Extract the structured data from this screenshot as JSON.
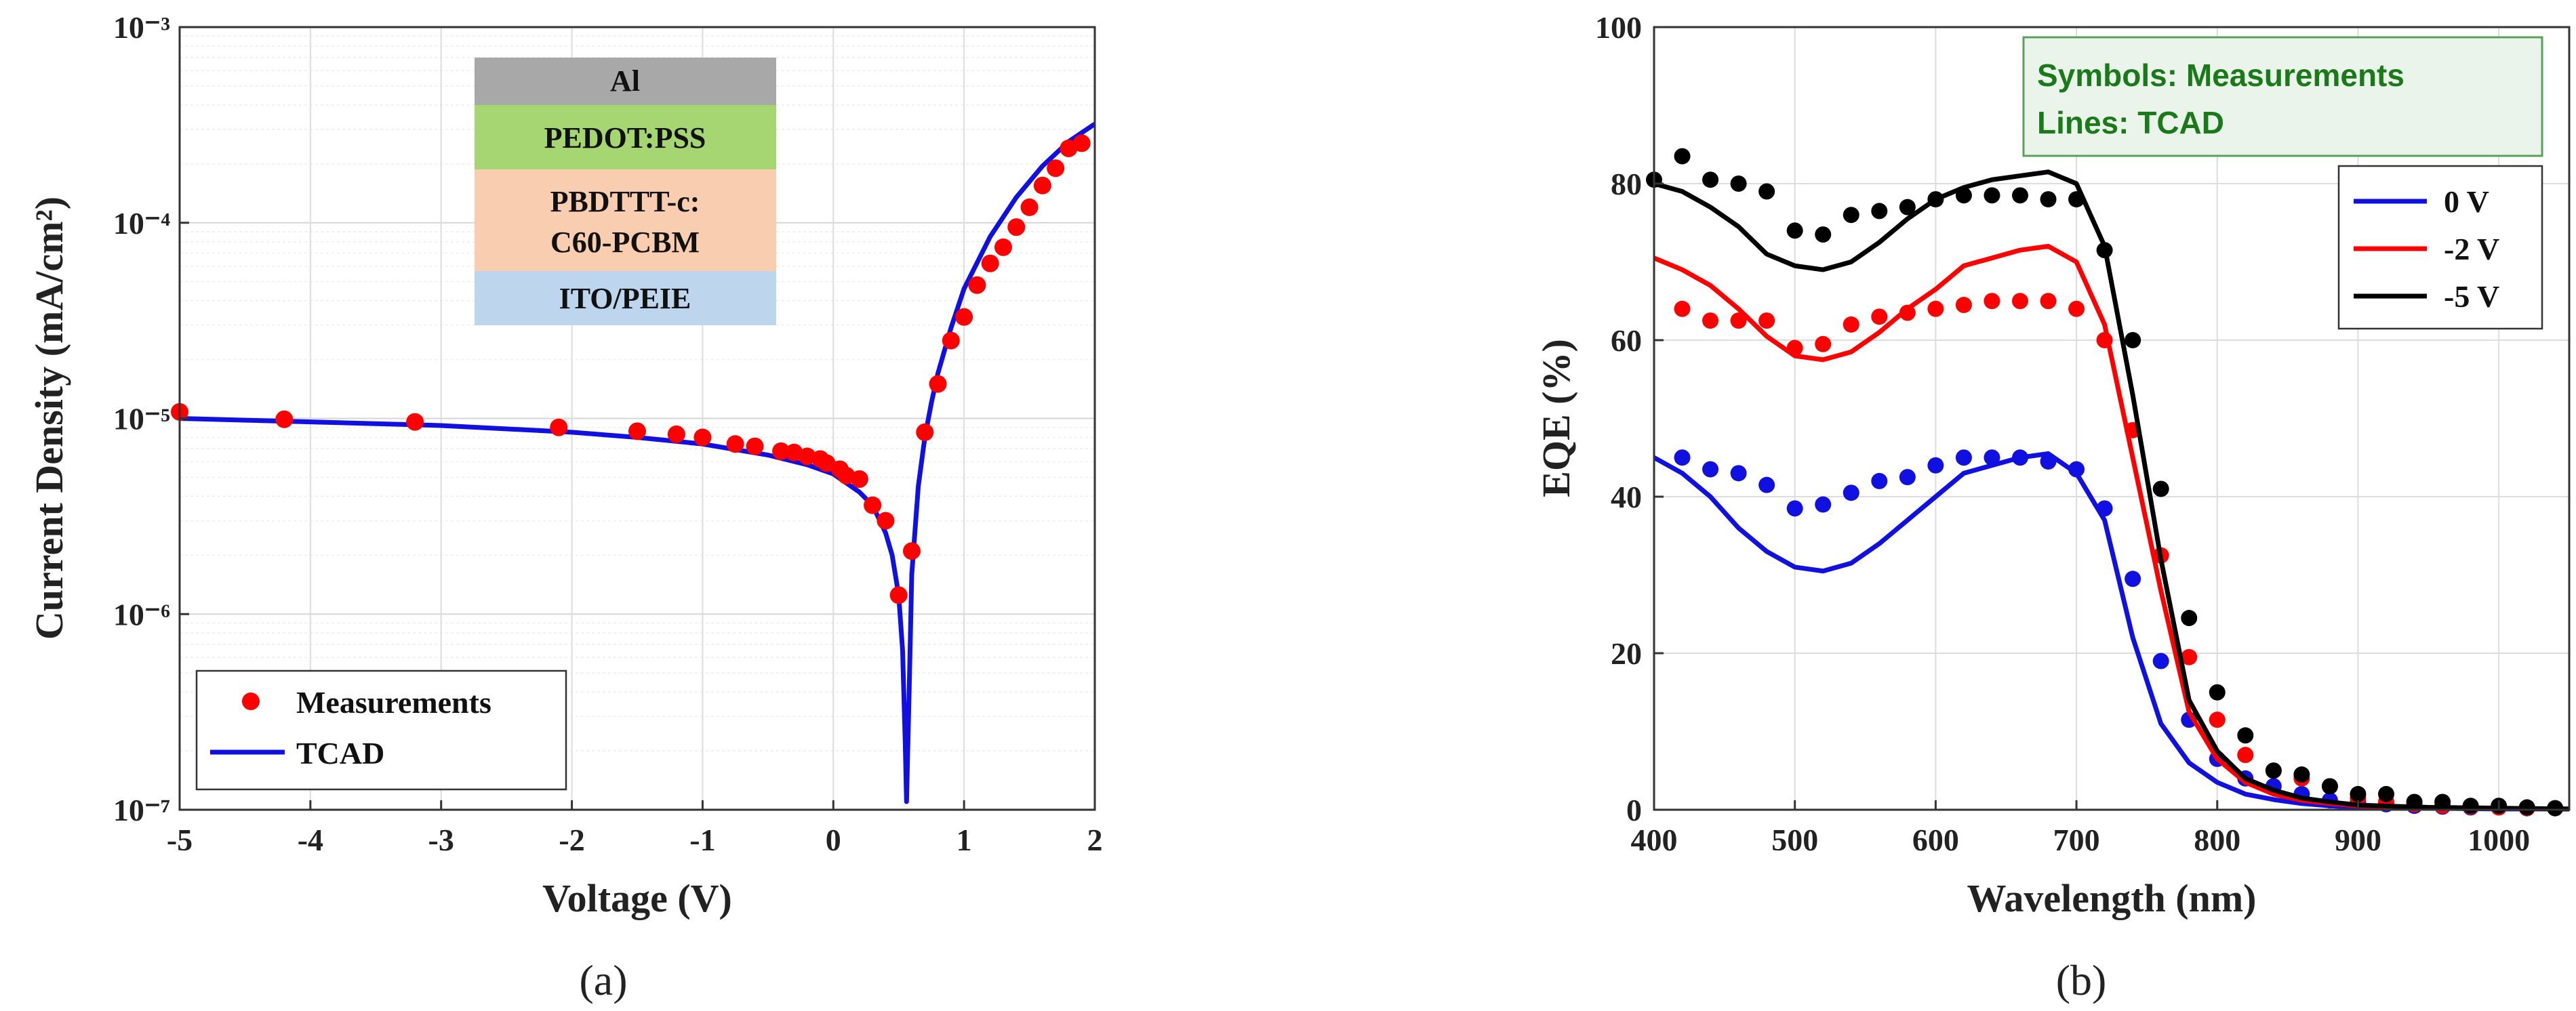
{
  "chart_data": [
    {
      "type": "scatter",
      "panel_label": "(a)",
      "xlabel": "Voltage (V)",
      "ylabel": "Current Density (mA/cm²)",
      "yscale": "log",
      "xlim": [
        -5,
        2
      ],
      "ylim_exp": [
        -7,
        -3
      ],
      "x_ticks": [
        "-5",
        "-4",
        "-3",
        "-2",
        "-1",
        "0",
        "1",
        "2"
      ],
      "y_ticks": [
        "10⁻⁷",
        "10⁻⁶",
        "10⁻⁵",
        "10⁻⁴",
        "10⁻³"
      ],
      "legend": [
        "Measurements",
        "TCAD"
      ],
      "layers": [
        "Al",
        "PEDOT:PSS",
        "PBDTTT-c:",
        "C60-PCBM",
        "ITO/PEIE"
      ],
      "colors": {
        "measurements": "#ff0000",
        "tcad": "#1010e0",
        "al": "#a8a8a8",
        "pedot": "#a6d672",
        "pbdttt": "#f9cdb0",
        "ito": "#bdd6ee"
      },
      "measurements": {
        "x": [
          -5,
          -4.2,
          -3.2,
          -2.1,
          -1.5,
          -1.2,
          -1.0,
          -0.75,
          -0.6,
          -0.4,
          -0.3,
          -0.2,
          -0.1,
          -0.05,
          0.05,
          0.1,
          0.2,
          0.3,
          0.4,
          0.5,
          0.6,
          0.7,
          0.8,
          0.9,
          1.0,
          1.1,
          1.2,
          1.3,
          1.4,
          1.5,
          1.6,
          1.7,
          1.8,
          1.9
        ],
        "y": [
          1.08e-05,
          9.9e-06,
          9.6e-06,
          9e-06,
          8.6e-06,
          8.3e-06,
          8e-06,
          7.4e-06,
          7.2e-06,
          6.8e-06,
          6.7e-06,
          6.4e-06,
          6.2e-06,
          5.9e-06,
          5.5e-06,
          5.1e-06,
          4.9e-06,
          3.6e-06,
          3e-06,
          1.25e-06,
          2.1e-06,
          8.5e-06,
          1.5e-05,
          2.5e-05,
          3.3e-05,
          4.8e-05,
          6.2e-05,
          7.5e-05,
          9.5e-05,
          0.00012,
          0.000155,
          0.00019,
          0.00024,
          0.000255
        ]
      },
      "tcad": {
        "x": [
          -5,
          -4,
          -3,
          -2,
          -1.5,
          -1,
          -0.5,
          -0.2,
          0,
          0.2,
          0.3,
          0.4,
          0.45,
          0.5,
          0.53,
          0.55,
          0.56,
          0.58,
          0.6,
          0.65,
          0.7,
          0.75,
          0.8,
          0.9,
          1.0,
          1.2,
          1.4,
          1.6,
          1.8,
          2.0
        ],
        "y": [
          1e-05,
          9.6e-06,
          9.2e-06,
          8.5e-06,
          8e-06,
          7.4e-06,
          6.5e-06,
          5.8e-06,
          5.2e-06,
          4.2e-06,
          3.6e-06,
          2.6e-06,
          2e-06,
          1.25e-06,
          6.5e-07,
          2.2e-07,
          1.1e-07,
          4e-07,
          1.6e-06,
          4.5e-06,
          8e-06,
          1.2e-05,
          1.7e-05,
          2.9e-05,
          4.6e-05,
          8.5e-05,
          0.000135,
          0.000195,
          0.00026,
          0.00032
        ]
      }
    },
    {
      "type": "line",
      "panel_label": "(b)",
      "xlabel": "Wavelength (nm)",
      "ylabel": "EQE (%)",
      "xlim": [
        400,
        1050
      ],
      "ylim": [
        0,
        100
      ],
      "x_ticks": [
        400,
        500,
        600,
        700,
        800,
        900,
        1000
      ],
      "y_ticks": [
        0,
        20,
        40,
        60,
        80,
        100
      ],
      "note": [
        "Symbols: Measurements",
        "Lines: TCAD"
      ],
      "colors": {
        "note_fill": "#eaf4ea",
        "note_border": "#5aa05a",
        "note_text": "#1a7a1a"
      },
      "series": [
        {
          "name": "0 V",
          "color": "#1010e0",
          "line": {
            "x": [
              400,
              420,
              440,
              460,
              480,
              500,
              520,
              540,
              560,
              580,
              600,
              620,
              640,
              660,
              680,
              700,
              720,
              740,
              760,
              780,
              800,
              820,
              840,
              860,
              880,
              900,
              950,
              1000,
              1050
            ],
            "y": [
              45,
              43,
              40,
              36,
              33,
              31,
              30.5,
              31.5,
              34,
              37,
              40,
              43,
              44,
              45,
              45.5,
              43,
              37,
              22,
              11,
              6,
              3.5,
              2,
              1.3,
              0.8,
              0.5,
              0.3,
              0.2,
              0.1,
              0.1
            ]
          },
          "points": {
            "x": [
              420,
              440,
              460,
              480,
              500,
              520,
              540,
              560,
              580,
              600,
              620,
              640,
              660,
              680,
              700,
              720,
              740,
              760,
              780,
              800,
              820,
              840,
              860,
              880,
              900,
              920,
              940,
              960,
              980,
              1000,
              1020,
              1040
            ],
            "y": [
              45,
              43.5,
              43,
              41.5,
              38.5,
              39,
              40.5,
              42,
              42.5,
              44,
              45,
              45,
              45,
              44.5,
              43.5,
              38.5,
              29.5,
              19,
              11.5,
              6.5,
              4,
              3,
              2,
              1.2,
              1,
              0.7,
              0.5,
              0.4,
              0.3,
              0.3,
              0.2,
              0.2
            ]
          }
        },
        {
          "name": "-2 V",
          "color": "#ff0000",
          "line": {
            "x": [
              400,
              420,
              440,
              460,
              480,
              500,
              520,
              540,
              560,
              580,
              600,
              620,
              640,
              660,
              680,
              700,
              720,
              740,
              760,
              780,
              800,
              820,
              840,
              860,
              880,
              900,
              950,
              1000,
              1050
            ],
            "y": [
              70.5,
              69,
              67,
              64,
              60.5,
              58,
              57.5,
              58.5,
              61,
              64,
              66.5,
              69.5,
              70.5,
              71.5,
              72,
              70,
              62,
              45,
              28,
              12.5,
              6.5,
              3.5,
              2,
              1.2,
              0.8,
              0.5,
              0.3,
              0.2,
              0.1
            ]
          },
          "points": {
            "x": [
              420,
              440,
              460,
              480,
              500,
              520,
              540,
              560,
              580,
              600,
              620,
              640,
              660,
              680,
              700,
              720,
              740,
              760,
              780,
              800,
              820,
              840,
              860,
              880,
              900,
              920,
              940,
              960,
              980,
              1000,
              1020,
              1040
            ],
            "y": [
              64,
              62.5,
              62.5,
              62.5,
              59,
              59.5,
              62,
              63,
              63.5,
              64,
              64.5,
              65,
              65,
              65,
              64,
              60,
              48.5,
              32.5,
              19.5,
              11.5,
              7,
              5,
              4,
              3,
              1.5,
              1,
              0.7,
              0.5,
              0.4,
              0.3,
              0.2,
              0.2
            ]
          }
        },
        {
          "name": "-5 V",
          "color": "#000000",
          "line": {
            "x": [
              400,
              420,
              440,
              460,
              480,
              500,
              520,
              540,
              560,
              580,
              600,
              620,
              640,
              660,
              680,
              700,
              720,
              740,
              760,
              780,
              800,
              820,
              840,
              860,
              880,
              900,
              950,
              1000,
              1050
            ],
            "y": [
              80,
              79,
              77,
              74.5,
              71,
              69.5,
              69,
              70,
              72.5,
              75.5,
              78,
              79.5,
              80.5,
              81,
              81.5,
              80,
              72,
              53,
              32,
              14,
              7.5,
              4,
              2.5,
              1.5,
              1,
              0.6,
              0.3,
              0.2,
              0.1
            ]
          },
          "points": {
            "x": [
              400,
              420,
              440,
              460,
              480,
              500,
              520,
              540,
              560,
              580,
              600,
              620,
              640,
              660,
              680,
              700,
              720,
              740,
              760,
              780,
              800,
              820,
              840,
              860,
              880,
              900,
              920,
              940,
              960,
              980,
              1000,
              1020,
              1040
            ],
            "y": [
              80.5,
              83.5,
              80.5,
              80,
              79,
              74,
              73.5,
              76,
              76.5,
              77,
              78,
              78.5,
              78.5,
              78.5,
              78,
              78,
              71.5,
              60,
              41,
              24.5,
              15,
              9.5,
              5,
              4.5,
              3,
              2,
              2,
              1,
              1,
              0.5,
              0.5,
              0.3,
              0.2
            ]
          }
        }
      ]
    }
  ]
}
